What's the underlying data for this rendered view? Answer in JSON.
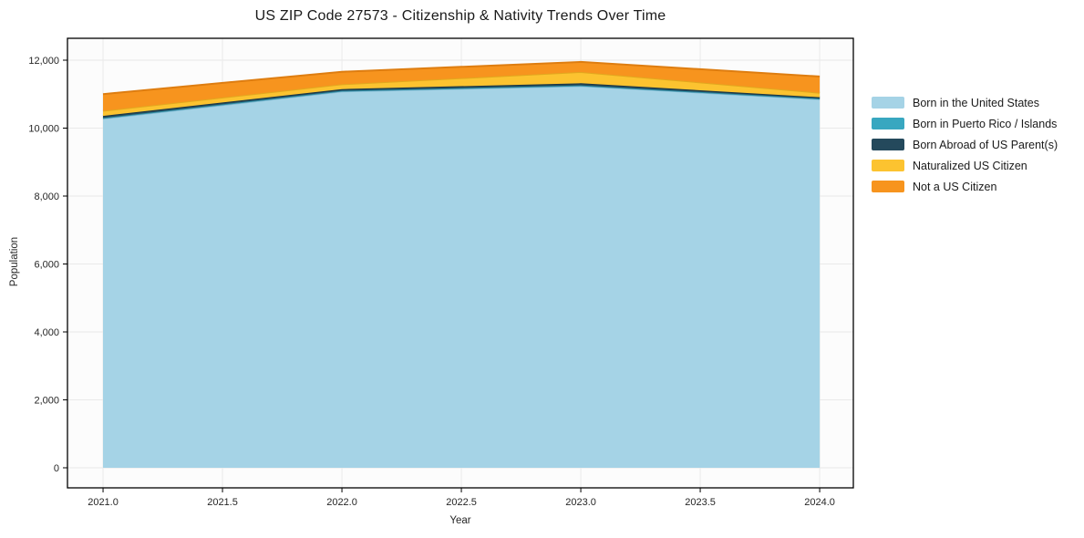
{
  "figure": {
    "background": "#ffffff"
  },
  "chart_data": {
    "type": "area",
    "stacked": true,
    "title": "US ZIP Code 27573 - Citizenship & Nativity Trends Over Time",
    "xlabel": "Year",
    "ylabel": "Population",
    "x": [
      2021,
      2022,
      2023,
      2024
    ],
    "series": [
      {
        "name": "Born in the United States",
        "color": "#a5d3e6",
        "edge": "#82b9d2",
        "values": [
          10280,
          11080,
          11240,
          10850
        ]
      },
      {
        "name": "Born in Puerto Rico / Islands",
        "color": "#38a7c0",
        "edge": "#2b8ba2",
        "values": [
          20,
          20,
          20,
          20
        ]
      },
      {
        "name": "Born Abroad of US Parent(s)",
        "color": "#24495c",
        "edge": "#1a3847",
        "values": [
          60,
          50,
          60,
          40
        ]
      },
      {
        "name": "Naturalized US Citizen",
        "color": "#fcc330",
        "edge": "#e2a81e",
        "values": [
          150,
          140,
          330,
          130
        ]
      },
      {
        "name": "Not a US Citizen",
        "color": "#f7941e",
        "edge": "#de7d10",
        "values": [
          490,
          370,
          300,
          480
        ]
      }
    ],
    "totals": [
      11000,
      11660,
      11950,
      11520
    ],
    "xlim": [
      2020.851,
      2024.141
    ],
    "ylim": [
      -591,
      12644
    ],
    "xticks": [
      2021.0,
      2021.5,
      2022.0,
      2022.5,
      2023.0,
      2023.5,
      2024.0
    ],
    "xtick_labels": [
      "2021.0",
      "2021.5",
      "2022.0",
      "2022.5",
      "2023.0",
      "2023.5",
      "2024.0"
    ],
    "yticks": [
      0,
      2000,
      4000,
      6000,
      8000,
      10000,
      12000
    ],
    "ytick_labels": [
      "0",
      "2,000",
      "4,000",
      "6,000",
      "8,000",
      "10,000",
      "12,000"
    ],
    "grid": true,
    "grid_color": "#e9e9e9",
    "plot_background": "#fcfcfc",
    "frame_color": "#000000",
    "legend_position": "right-outside"
  }
}
